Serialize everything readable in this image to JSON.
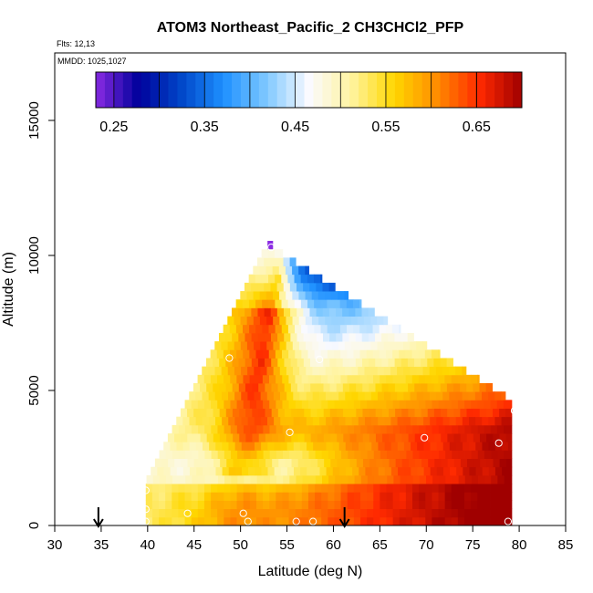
{
  "chart_data": {
    "type": "heatmap",
    "title": "ATOM3 Northeast_Pacific_2 CH3CHCl2_PFP",
    "flts_text": "Flts: 12,13",
    "mmdd_text": "MMDD: 1025,1027",
    "xlabel": "Latitude (deg N)",
    "ylabel": "Altitude (m)",
    "xlim": [
      30,
      85
    ],
    "ylim": [
      0,
      17500
    ],
    "x_ticks": [
      "30",
      "35",
      "40",
      "45",
      "50",
      "55",
      "60",
      "65",
      "70",
      "75",
      "80",
      "85"
    ],
    "y_ticks": [
      "0",
      "5000",
      "10000",
      "15000"
    ],
    "colorbar": {
      "range": [
        0.23,
        0.7
      ],
      "tick_values": [
        0.25,
        0.35,
        0.45,
        0.55,
        0.65
      ],
      "tick_labels": [
        "0.25",
        "0.35",
        "0.45",
        "0.55",
        "0.65"
      ],
      "colors": [
        "#8a2be2",
        "#00009c",
        "#0046c8",
        "#1e90ff",
        "#7ec8ff",
        "#fafaff",
        "#fff4a0",
        "#ffd700",
        "#ff8c00",
        "#ff2a00",
        "#a00000"
      ]
    },
    "sample_points": [
      {
        "lat": 53.3,
        "alt": 10300
      },
      {
        "lat": 48.8,
        "alt": 6200
      },
      {
        "lat": 58.5,
        "alt": 6150
      },
      {
        "lat": 55.3,
        "alt": 3450
      },
      {
        "lat": 79.5,
        "alt": 4250
      },
      {
        "lat": 69.8,
        "alt": 3250
      },
      {
        "lat": 77.8,
        "alt": 3050
      },
      {
        "lat": 39.8,
        "alt": 1300
      },
      {
        "lat": 39.8,
        "alt": 600
      },
      {
        "lat": 44.3,
        "alt": 450
      },
      {
        "lat": 39.8,
        "alt": 150
      },
      {
        "lat": 50.3,
        "alt": 450
      },
      {
        "lat": 50.8,
        "alt": 150
      },
      {
        "lat": 56.0,
        "alt": 150
      },
      {
        "lat": 57.8,
        "alt": 150
      },
      {
        "lat": 78.8,
        "alt": 150
      }
    ],
    "arrows_lat": [
      34.7,
      61.2
    ]
  }
}
